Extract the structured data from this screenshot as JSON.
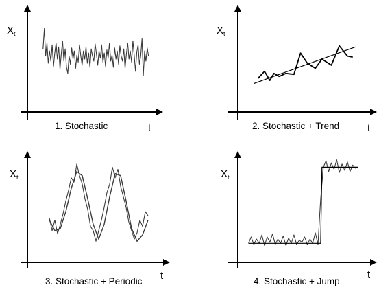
{
  "panels": [
    {
      "caption": "1.  Stochastic",
      "y_axis_label": "X",
      "y_axis_subscript": "t",
      "x_axis_label": "t"
    },
    {
      "caption": "2.  Stochastic + Trend",
      "y_axis_label": "X",
      "y_axis_subscript": "t",
      "x_axis_label": "t"
    },
    {
      "caption": "3. Stochastic + Periodic",
      "y_axis_label": "X",
      "y_axis_subscript": "t",
      "x_axis_label": "t"
    },
    {
      "caption": "4.  Stochastic + Jump",
      "y_axis_label": "X",
      "y_axis_subscript": "t",
      "x_axis_label": "t"
    }
  ],
  "chart_data": [
    {
      "type": "line",
      "title": "1.  Stochastic",
      "xlabel": "t",
      "ylabel": "Xt",
      "xlim": [
        0,
        1
      ],
      "ylim": [
        0,
        1
      ],
      "series": [
        {
          "style": "noisy",
          "x": [
            0.12,
            0.13,
            0.14,
            0.15,
            0.16,
            0.17,
            0.18,
            0.19,
            0.2,
            0.21,
            0.22,
            0.23,
            0.24,
            0.25,
            0.26,
            0.27,
            0.28,
            0.29,
            0.3,
            0.31,
            0.32,
            0.33,
            0.34,
            0.35,
            0.36,
            0.37,
            0.38,
            0.39,
            0.4,
            0.41,
            0.42,
            0.43,
            0.44,
            0.45,
            0.46,
            0.47,
            0.48,
            0.49,
            0.5,
            0.51,
            0.52,
            0.53,
            0.54,
            0.55,
            0.56,
            0.57,
            0.58,
            0.59,
            0.6,
            0.61,
            0.62,
            0.63,
            0.64,
            0.65,
            0.66,
            0.67,
            0.68,
            0.69,
            0.7,
            0.71,
            0.72,
            0.73,
            0.74,
            0.75,
            0.76,
            0.77,
            0.78,
            0.79,
            0.8,
            0.81,
            0.82,
            0.83,
            0.84,
            0.85,
            0.86,
            0.87,
            0.88,
            0.89,
            0.9,
            0.91,
            0.92,
            0.93
          ],
          "y": [
            0.62,
            0.82,
            0.55,
            0.68,
            0.48,
            0.6,
            0.5,
            0.66,
            0.45,
            0.58,
            0.68,
            0.52,
            0.64,
            0.42,
            0.57,
            0.7,
            0.5,
            0.62,
            0.44,
            0.38,
            0.55,
            0.47,
            0.63,
            0.52,
            0.6,
            0.43,
            0.56,
            0.49,
            0.66,
            0.55,
            0.46,
            0.6,
            0.52,
            0.64,
            0.48,
            0.58,
            0.44,
            0.62,
            0.55,
            0.5,
            0.67,
            0.57,
            0.46,
            0.6,
            0.53,
            0.66,
            0.49,
            0.58,
            0.45,
            0.61,
            0.53,
            0.68,
            0.5,
            0.56,
            0.44,
            0.63,
            0.52,
            0.6,
            0.47,
            0.65,
            0.55,
            0.5,
            0.62,
            0.43,
            0.57,
            0.68,
            0.52,
            0.6,
            0.49,
            0.7,
            0.56,
            0.4,
            0.59,
            0.66,
            0.47,
            0.55,
            0.72,
            0.36,
            0.6,
            0.5,
            0.63,
            0.55
          ]
        }
      ]
    },
    {
      "type": "line",
      "title": "2.  Stochastic + Trend",
      "xlabel": "t",
      "ylabel": "Xt",
      "xlim": [
        0,
        1
      ],
      "ylim": [
        0,
        1
      ],
      "series": [
        {
          "style": "zigzag",
          "x": [
            0.15,
            0.2,
            0.24,
            0.27,
            0.31,
            0.36,
            0.42,
            0.47,
            0.52,
            0.58,
            0.63,
            0.7,
            0.76,
            0.82,
            0.86
          ],
          "y": [
            0.33,
            0.4,
            0.31,
            0.38,
            0.35,
            0.38,
            0.37,
            0.58,
            0.48,
            0.43,
            0.52,
            0.46,
            0.65,
            0.55,
            0.54
          ]
        },
        {
          "style": "trend",
          "x": [
            0.12,
            0.88
          ],
          "y": [
            0.28,
            0.64
          ]
        }
      ]
    },
    {
      "type": "line",
      "title": "3. Stochastic + Periodic",
      "xlabel": "t",
      "ylabel": "Xt",
      "xlim": [
        0,
        1
      ],
      "ylim": [
        0,
        1
      ],
      "series": [
        {
          "style": "noisy",
          "x": [
            0.16,
            0.18,
            0.2,
            0.22,
            0.24,
            0.26,
            0.28,
            0.3,
            0.32,
            0.34,
            0.36,
            0.38,
            0.4,
            0.42,
            0.44,
            0.46,
            0.48,
            0.5,
            0.52,
            0.54,
            0.56,
            0.58,
            0.6,
            0.62,
            0.64,
            0.66,
            0.68,
            0.7,
            0.72,
            0.74,
            0.76,
            0.78,
            0.8,
            0.82,
            0.84,
            0.86,
            0.88
          ],
          "y": [
            0.42,
            0.3,
            0.4,
            0.27,
            0.36,
            0.46,
            0.58,
            0.68,
            0.8,
            0.76,
            0.93,
            0.82,
            0.74,
            0.6,
            0.5,
            0.34,
            0.3,
            0.2,
            0.3,
            0.4,
            0.52,
            0.66,
            0.74,
            0.9,
            0.8,
            0.88,
            0.72,
            0.62,
            0.52,
            0.38,
            0.3,
            0.22,
            0.28,
            0.4,
            0.34,
            0.48,
            0.44
          ]
        },
        {
          "style": "smooth",
          "x": [
            0.16,
            0.2,
            0.24,
            0.28,
            0.32,
            0.36,
            0.4,
            0.44,
            0.48,
            0.52,
            0.56,
            0.6,
            0.64,
            0.68,
            0.72,
            0.76,
            0.8,
            0.84,
            0.88
          ],
          "y": [
            0.4,
            0.3,
            0.32,
            0.48,
            0.7,
            0.86,
            0.82,
            0.6,
            0.36,
            0.22,
            0.36,
            0.62,
            0.84,
            0.82,
            0.58,
            0.32,
            0.2,
            0.26,
            0.4
          ]
        }
      ]
    },
    {
      "type": "line",
      "title": "4.  Stochastic + Jump",
      "xlabel": "t",
      "ylabel": "Xt",
      "xlim": [
        0,
        1
      ],
      "ylim": [
        0,
        1
      ],
      "series": [
        {
          "style": "noisy",
          "x": [
            0.08,
            0.1,
            0.12,
            0.14,
            0.16,
            0.18,
            0.2,
            0.22,
            0.24,
            0.26,
            0.28,
            0.3,
            0.32,
            0.34,
            0.36,
            0.38,
            0.4,
            0.42,
            0.44,
            0.46,
            0.48,
            0.5,
            0.52,
            0.54,
            0.56,
            0.58,
            0.6,
            0.62,
            0.64,
            0.66,
            0.68,
            0.7,
            0.72,
            0.74,
            0.76,
            0.78,
            0.8,
            0.82,
            0.84,
            0.86,
            0.88,
            0.9
          ],
          "y": [
            0.18,
            0.24,
            0.17,
            0.22,
            0.18,
            0.26,
            0.16,
            0.24,
            0.19,
            0.27,
            0.17,
            0.22,
            0.18,
            0.25,
            0.16,
            0.23,
            0.18,
            0.26,
            0.17,
            0.21,
            0.19,
            0.24,
            0.17,
            0.22,
            0.18,
            0.28,
            0.17,
            0.6,
            0.9,
            0.96,
            0.86,
            0.94,
            0.88,
            0.97,
            0.85,
            0.93,
            0.87,
            0.95,
            0.86,
            0.92,
            0.89,
            0.9
          ]
        },
        {
          "style": "step",
          "x": [
            0.08,
            0.62,
            0.63,
            0.9
          ],
          "y": [
            0.18,
            0.18,
            0.9,
            0.9
          ]
        }
      ]
    }
  ]
}
